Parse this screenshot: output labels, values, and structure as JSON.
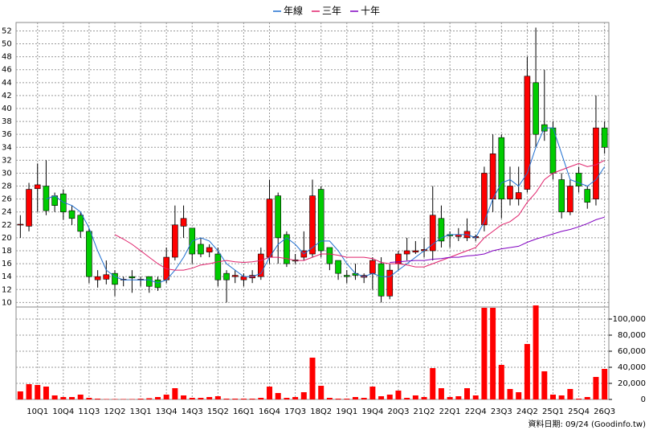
{
  "chart_data": {
    "type": "candlestick",
    "categories": [
      null,
      null,
      "10Q1",
      null,
      null,
      "10Q4",
      null,
      null,
      "11Q3",
      null,
      null,
      "12Q2",
      null,
      null,
      "13Q1",
      null,
      null,
      "13Q4",
      null,
      null,
      "14Q3",
      null,
      null,
      "15Q2",
      null,
      null,
      "16Q1",
      null,
      null,
      "16Q4",
      null,
      null,
      "17Q3",
      null,
      null,
      "18Q2",
      null,
      null,
      "19Q1",
      null,
      null,
      "19Q4",
      null,
      null,
      "20Q3",
      null,
      null,
      "21Q2",
      null,
      null,
      "22Q1",
      null,
      null,
      "22Q4",
      null,
      null,
      "23Q3",
      null,
      null,
      "24Q2",
      null,
      null,
      "25Q1",
      null,
      null,
      "25Q4",
      null,
      null,
      "26Q3"
    ],
    "open": [
      22,
      21.8,
      27.6,
      28,
      26.5,
      26.8,
      24.2,
      23.5,
      21,
      13.5,
      13.6,
      14.5,
      13.5,
      14,
      13.6,
      14,
      13.5,
      13.5,
      17,
      21.8,
      21.5,
      19,
      17.8,
      17.5,
      14.5,
      14,
      13.5,
      13.8,
      14,
      17,
      26.5,
      20.5,
      16.6,
      17,
      17.5,
      27.5,
      18.5,
      16.5,
      14.2,
      14.5,
      13.9,
      14.5,
      16,
      11,
      16,
      17.5,
      17.8,
      18,
      18,
      23,
      20.5,
      20.2,
      20,
      20,
      22,
      26,
      35.5,
      26,
      26,
      27.5,
      44,
      37.5,
      37,
      29,
      24,
      30,
      27.5,
      26,
      37
    ],
    "high": [
      23.5,
      28.5,
      31.5,
      32,
      27,
      27.5,
      25,
      24,
      21.5,
      15,
      16.5,
      15,
      14,
      15,
      14,
      14,
      14,
      18.5,
      25,
      25,
      21.5,
      20,
      19,
      18.5,
      15,
      15,
      14.5,
      15,
      18.5,
      29,
      27,
      21,
      17.5,
      21,
      29,
      28,
      18.5,
      16.5,
      15,
      16,
      14.5,
      17,
      17,
      16,
      18,
      20,
      19.5,
      20,
      28,
      25,
      21,
      21.5,
      23,
      20.5,
      31,
      36,
      36,
      31,
      31,
      48,
      52.5,
      46,
      38,
      30,
      29,
      31,
      28,
      42,
      38
    ],
    "low": [
      20,
      21,
      24,
      23.5,
      24,
      22.8,
      22,
      20,
      13,
      12.3,
      12.8,
      11,
      12.5,
      11.5,
      12.5,
      11.5,
      11.8,
      13,
      16.5,
      20,
      16,
      17,
      17,
      12.5,
      10,
      13,
      12.5,
      13,
      13.5,
      16,
      16,
      15.5,
      16,
      16.5,
      17,
      17,
      15,
      13.5,
      13,
      13.5,
      13,
      12,
      10,
      10.5,
      15,
      16.5,
      17.5,
      17,
      16.5,
      18.5,
      18.5,
      19.5,
      19.5,
      19.5,
      21,
      24,
      23,
      25,
      25,
      27,
      34,
      35,
      29,
      23,
      23.5,
      27,
      24.5,
      25,
      33
    ],
    "close": [
      22.1,
      27.5,
      28.2,
      24.2,
      25,
      24,
      23,
      21,
      14,
      14,
      14.3,
      12.8,
      13.6,
      13.8,
      13.6,
      12.5,
      12.3,
      17,
      22,
      23,
      17.5,
      17.5,
      18.5,
      13.5,
      13.5,
      14.2,
      14,
      14.2,
      17.5,
      26,
      20,
      16,
      16.4,
      18,
      26.5,
      18,
      16,
      14.5,
      14,
      14.2,
      14.2,
      16.5,
      11,
      15,
      17.5,
      18,
      18,
      18.2,
      23.5,
      19.5,
      20.3,
      20.5,
      21,
      20.2,
      30,
      33,
      26,
      28,
      27,
      45,
      36,
      36.5,
      30,
      24,
      28,
      28,
      25.5,
      37,
      34
    ],
    "up_color": "#ff0000",
    "down_color": "#00cc00",
    "series": [
      {
        "name": "年線",
        "color": "#1f6fd0",
        "values": [
          null,
          null,
          null,
          26,
          26.5,
          25.5,
          25,
          24,
          21.5,
          18,
          15,
          14,
          13.5,
          13.5,
          13.5,
          13.5,
          13,
          13.5,
          15,
          17,
          19.5,
          20,
          19.5,
          18,
          16,
          15,
          14,
          14,
          14.5,
          17,
          19,
          20,
          19,
          17.5,
          18.5,
          19.5,
          19.5,
          18,
          16,
          14.5,
          14,
          14.5,
          14,
          14,
          15,
          16,
          17,
          18,
          19,
          20,
          20.5,
          20.5,
          20.5,
          20,
          22.5,
          26,
          28.5,
          29,
          28,
          30,
          34,
          37,
          37,
          33,
          29,
          28.5,
          28,
          29,
          31
        ]
      },
      {
        "name": "三年",
        "color": "#e0206a",
        "values": [
          null,
          null,
          null,
          null,
          null,
          null,
          null,
          null,
          null,
          null,
          null,
          20.5,
          19.8,
          19,
          18,
          17,
          16,
          15.2,
          15,
          15,
          15.3,
          15.8,
          16,
          16.3,
          16.5,
          16.3,
          16.2,
          16.3,
          16.5,
          17,
          17,
          16.8,
          16.5,
          16.5,
          17,
          17.5,
          17.5,
          17.3,
          17,
          17,
          17,
          16.8,
          16.2,
          16,
          16,
          15.8,
          15.5,
          15.5,
          16,
          16.5,
          17,
          17.5,
          18,
          18.5,
          20,
          21,
          22,
          22.5,
          23.5,
          25.5,
          27,
          29,
          30,
          30.5,
          31,
          31.5,
          31,
          31.3,
          32
        ]
      },
      {
        "name": "十年",
        "color": "#8000c0",
        "values": [
          null,
          null,
          null,
          null,
          null,
          null,
          null,
          null,
          null,
          null,
          null,
          null,
          null,
          null,
          null,
          null,
          null,
          null,
          null,
          null,
          null,
          null,
          null,
          null,
          null,
          null,
          null,
          null,
          null,
          null,
          null,
          null,
          null,
          null,
          null,
          null,
          null,
          null,
          null,
          null,
          null,
          null,
          null,
          16.2,
          16.3,
          16.4,
          16.5,
          16.5,
          16.7,
          16.8,
          17,
          17,
          17.2,
          17.3,
          17.5,
          18,
          18.3,
          18.5,
          18.7,
          19.3,
          19.8,
          20.2,
          20.6,
          21,
          21.3,
          21.7,
          22.2,
          22.8,
          23.2
        ]
      }
    ],
    "ylim": [
      9.3,
      53.3
    ],
    "yticks": [
      10,
      12,
      14,
      16,
      18,
      20,
      22,
      24,
      26,
      28,
      30,
      32,
      34,
      36,
      38,
      40,
      42,
      44,
      46,
      48,
      50,
      52
    ],
    "grid": true,
    "volume": {
      "type": "bar",
      "color": "#ff0000",
      "values": [
        10000,
        19000,
        18000,
        16000,
        5000,
        3000,
        3000,
        6000,
        2000,
        1000,
        500,
        500,
        500,
        500,
        1000,
        1500,
        3000,
        6000,
        14000,
        5000,
        2000,
        2000,
        3000,
        4000,
        1000,
        1000,
        1000,
        1000,
        2000,
        16000,
        8000,
        2000,
        3000,
        9000,
        52000,
        17000,
        2000,
        1000,
        1000,
        3000,
        2000,
        16000,
        4000,
        6000,
        11000,
        2000,
        5000,
        3000,
        39000,
        14000,
        3000,
        4000,
        14000,
        5000,
        114000,
        114000,
        43000,
        13000,
        9000,
        69000,
        117000,
        35000,
        6000,
        5000,
        13000,
        1000,
        3000,
        28000,
        38000
      ],
      "ylim": [
        0,
        115000
      ],
      "yticks": [
        0,
        {
          "value": 20000,
          "label": "20,000"
        },
        {
          "value": 40000,
          "label": "40,000"
        },
        {
          "value": 60000,
          "label": "60,000"
        },
        {
          "value": 80000,
          "label": "80,000"
        },
        {
          "value": 100000,
          "label": "100,000"
        }
      ]
    },
    "annotation": "資料日期: 09/24 (Goodinfo.tw)"
  }
}
